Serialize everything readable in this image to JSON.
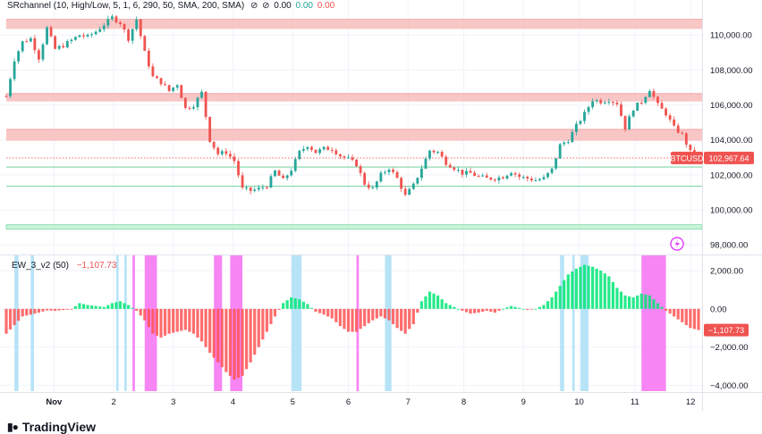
{
  "header": {
    "indicator_name": "SRchannel",
    "indicator_params": "(10, High/Low, 5, 1, 6, 290, 50, SMA, 200, SMA)",
    "icons": [
      "eye-off-icon",
      "eye-off-icon"
    ],
    "values": [
      "0.00",
      "0.00",
      "0.00"
    ],
    "value_colors": [
      "#131722",
      "#26a69a",
      "#ef5350"
    ]
  },
  "lower_pane": {
    "indicator_name": "EW_3_v2",
    "indicator_params": "(50)",
    "current_value": "−1,107.73",
    "current_value_color": "#ef5350"
  },
  "price_tag": {
    "symbol": "BTCUSD",
    "value": "102,967.64"
  },
  "brand": "TradingView",
  "colors": {
    "up": "#26a69a",
    "down": "#ef5350",
    "resistance": "#f8bcbc",
    "support_line": "#7fd6a6",
    "support_zone": "#c8f5da",
    "cyan_band": "#b3e2f7",
    "magenta_band": "#f77ef3"
  },
  "chart_data": [
    {
      "type": "candlestick",
      "x_tick_labels": [
        "Nov",
        "2",
        "3",
        "4",
        "5",
        "6",
        "7",
        "8",
        "9",
        "10",
        "11",
        "12"
      ],
      "y_tick_labels": [
        "110,000.00",
        "108,000.00",
        "106,000.00",
        "104,000.00",
        "102,000.00",
        "100,000.00",
        "98,000.00"
      ],
      "ylim": [
        97600,
        111800
      ],
      "close_path": [
        [
          0,
          106500
        ],
        [
          2,
          108600
        ],
        [
          4,
          109600
        ],
        [
          6,
          109800
        ],
        [
          8,
          108700
        ],
        [
          10,
          110400
        ],
        [
          12,
          109200
        ],
        [
          14,
          109400
        ],
        [
          16,
          109700
        ],
        [
          18,
          110000
        ],
        [
          20,
          109900
        ],
        [
          22,
          110200
        ],
        [
          24,
          110600
        ],
        [
          26,
          111000
        ],
        [
          28,
          110700
        ],
        [
          30,
          109800
        ],
        [
          32,
          110900
        ],
        [
          34,
          109000
        ],
        [
          36,
          107600
        ],
        [
          38,
          107300
        ],
        [
          40,
          106800
        ],
        [
          42,
          107200
        ],
        [
          44,
          105800
        ],
        [
          46,
          106000
        ],
        [
          48,
          106700
        ],
        [
          50,
          104000
        ],
        [
          52,
          103200
        ],
        [
          54,
          103300
        ],
        [
          56,
          102800
        ],
        [
          58,
          101200
        ],
        [
          60,
          101100
        ],
        [
          62,
          101200
        ],
        [
          64,
          101400
        ],
        [
          66,
          102200
        ],
        [
          68,
          101700
        ],
        [
          70,
          102300
        ],
        [
          72,
          103300
        ],
        [
          74,
          103700
        ],
        [
          76,
          103300
        ],
        [
          78,
          103500
        ],
        [
          80,
          103500
        ],
        [
          82,
          103100
        ],
        [
          84,
          102900
        ],
        [
          86,
          102600
        ],
        [
          88,
          101500
        ],
        [
          90,
          101200
        ],
        [
          92,
          102000
        ],
        [
          94,
          102400
        ],
        [
          96,
          101800
        ],
        [
          98,
          100800
        ],
        [
          100,
          101400
        ],
        [
          102,
          102400
        ],
        [
          104,
          103400
        ],
        [
          106,
          103300
        ],
        [
          108,
          102700
        ],
        [
          110,
          102400
        ],
        [
          112,
          102100
        ],
        [
          114,
          102100
        ],
        [
          116,
          101900
        ],
        [
          118,
          101800
        ],
        [
          120,
          101800
        ],
        [
          122,
          101900
        ],
        [
          124,
          102200
        ],
        [
          126,
          101900
        ],
        [
          128,
          101800
        ],
        [
          130,
          101700
        ],
        [
          132,
          101800
        ],
        [
          134,
          102300
        ],
        [
          136,
          103700
        ],
        [
          138,
          104000
        ],
        [
          140,
          104800
        ],
        [
          142,
          105500
        ],
        [
          144,
          106300
        ],
        [
          146,
          106200
        ],
        [
          148,
          106300
        ],
        [
          150,
          106100
        ],
        [
          152,
          104700
        ],
        [
          154,
          105800
        ],
        [
          156,
          106200
        ],
        [
          158,
          106900
        ],
        [
          160,
          106000
        ],
        [
          162,
          105500
        ],
        [
          164,
          104700
        ],
        [
          166,
          104300
        ],
        [
          168,
          103300
        ],
        [
          170,
          102967.64
        ]
      ],
      "support_zone_top": 99150,
      "support_zone_bottom": 98900,
      "resistance_zones": [
        [
          110900,
          110350
        ],
        [
          106650,
          106200
        ],
        [
          104600,
          103950
        ]
      ],
      "support_lines": [
        102450,
        101350
      ],
      "current_price": 102967.64
    },
    {
      "type": "histogram",
      "y_tick_labels": [
        "2,000.00",
        "0.00",
        "−2,000.00",
        "−4,000.00"
      ],
      "ylim": [
        -4300,
        2700
      ],
      "series_name": "EW_3_v2",
      "control_points": [
        [
          0,
          -1300
        ],
        [
          4,
          -400
        ],
        [
          8,
          -200
        ],
        [
          10,
          -80
        ],
        [
          12,
          -100
        ],
        [
          14,
          -60
        ],
        [
          16,
          -20
        ],
        [
          18,
          300
        ],
        [
          20,
          200
        ],
        [
          22,
          150
        ],
        [
          24,
          100
        ],
        [
          26,
          300
        ],
        [
          28,
          400
        ],
        [
          30,
          200
        ],
        [
          32,
          -100
        ],
        [
          34,
          -600
        ],
        [
          36,
          -1300
        ],
        [
          38,
          -1500
        ],
        [
          40,
          -1300
        ],
        [
          42,
          -1200
        ],
        [
          44,
          -1100
        ],
        [
          46,
          -1300
        ],
        [
          48,
          -1700
        ],
        [
          50,
          -2300
        ],
        [
          52,
          -2800
        ],
        [
          54,
          -3300
        ],
        [
          56,
          -3700
        ],
        [
          58,
          -3500
        ],
        [
          60,
          -2800
        ],
        [
          62,
          -2000
        ],
        [
          64,
          -1200
        ],
        [
          66,
          -400
        ],
        [
          68,
          300
        ],
        [
          70,
          600
        ],
        [
          72,
          500
        ],
        [
          74,
          250
        ],
        [
          76,
          -150
        ],
        [
          78,
          -300
        ],
        [
          80,
          -500
        ],
        [
          82,
          -900
        ],
        [
          84,
          -1200
        ],
        [
          86,
          -1200
        ],
        [
          88,
          -900
        ],
        [
          90,
          -600
        ],
        [
          92,
          -400
        ],
        [
          94,
          -600
        ],
        [
          96,
          -1000
        ],
        [
          98,
          -1300
        ],
        [
          100,
          -800
        ],
        [
          102,
          400
        ],
        [
          104,
          900
        ],
        [
          106,
          700
        ],
        [
          108,
          300
        ],
        [
          110,
          100
        ],
        [
          112,
          -100
        ],
        [
          114,
          -250
        ],
        [
          116,
          -200
        ],
        [
          118,
          -100
        ],
        [
          120,
          -200
        ],
        [
          122,
          0
        ],
        [
          124,
          150
        ],
        [
          126,
          50
        ],
        [
          128,
          -50
        ],
        [
          130,
          0
        ],
        [
          132,
          200
        ],
        [
          134,
          600
        ],
        [
          136,
          1200
        ],
        [
          138,
          1800
        ],
        [
          140,
          2100
        ],
        [
          142,
          2300
        ],
        [
          144,
          2200
        ],
        [
          146,
          2000
        ],
        [
          148,
          1700
        ],
        [
          150,
          1100
        ],
        [
          152,
          700
        ],
        [
          154,
          600
        ],
        [
          156,
          800
        ],
        [
          158,
          700
        ],
        [
          160,
          300
        ],
        [
          162,
          -100
        ],
        [
          164,
          -400
        ],
        [
          166,
          -700
        ],
        [
          168,
          -1000
        ],
        [
          170,
          -1107.73
        ]
      ],
      "cyan_bands": [
        [
          2,
          3
        ],
        [
          6,
          6.8
        ],
        [
          27,
          27.6
        ],
        [
          29,
          29.6
        ],
        [
          70,
          72.5
        ],
        [
          93,
          94.6
        ],
        [
          136,
          137
        ],
        [
          139,
          139.6
        ],
        [
          141,
          143
        ]
      ],
      "magenta_bands": [
        [
          31,
          31.6
        ],
        [
          34,
          37
        ],
        [
          51,
          53
        ],
        [
          55,
          58
        ],
        [
          86,
          86.6
        ],
        [
          156,
          162
        ]
      ]
    }
  ]
}
